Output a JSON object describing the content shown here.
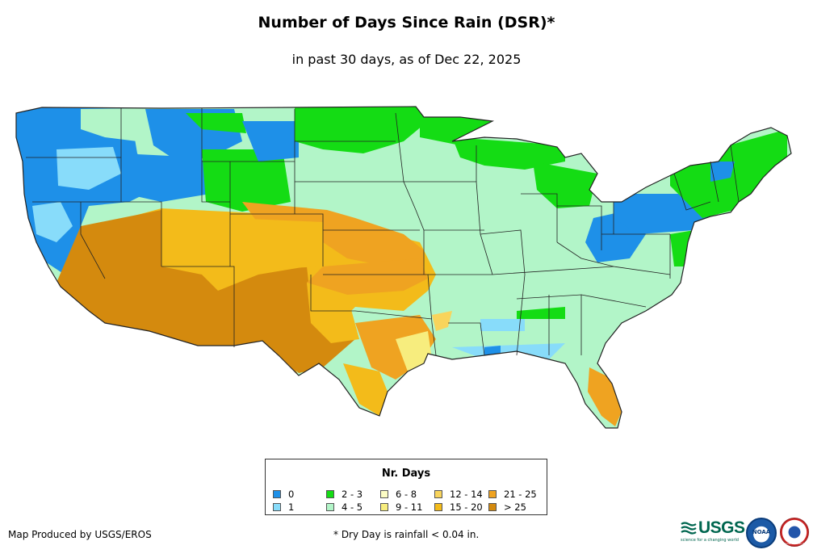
{
  "title": "Number of Days Since Rain (DSR)*",
  "subtitle": "in past 30 days, as of Dec 22, 2025",
  "legend": {
    "title": "Nr. Days",
    "items": [
      {
        "label": "0",
        "color": "#1e90e8"
      },
      {
        "label": "1",
        "color": "#88dcfa"
      },
      {
        "label": "2 - 3",
        "color": "#14dc14"
      },
      {
        "label": "4 - 5",
        "color": "#b2f5c8"
      },
      {
        "label": "6 - 8",
        "color": "#fcfcc4"
      },
      {
        "label": "9 - 11",
        "color": "#f7ed7e"
      },
      {
        "label": "12 - 14",
        "color": "#f8d45c"
      },
      {
        "label": "15 - 20",
        "color": "#f3bb1a"
      },
      {
        "label": "21 - 25",
        "color": "#efa321"
      },
      {
        "label": "> 25",
        "color": "#d48a0e"
      }
    ]
  },
  "credit": "Map Produced by USGS/EROS",
  "footnote": "* Dry Day is rainfall < 0.04 in.",
  "logos": {
    "usgs": "USGS",
    "usgs_tagline": "science for a changing world",
    "noaa": "NOAA",
    "nws": "National Weather Service"
  }
}
